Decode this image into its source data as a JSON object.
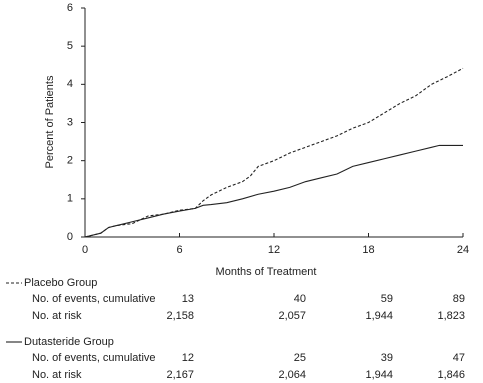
{
  "chart_data": {
    "type": "line",
    "xlabel": "Months of Treatment",
    "ylabel": "Percent of Patients",
    "xlim": [
      0,
      24
    ],
    "xticks": [
      0,
      6,
      12,
      18,
      24
    ],
    "ylim": [
      0,
      6
    ],
    "yticks": [
      0,
      1,
      2,
      3,
      4,
      5,
      6
    ],
    "series": [
      {
        "name": "Placebo Group",
        "color": "#222222",
        "dash": true,
        "x": [
          0,
          1,
          1.5,
          2,
          3,
          4,
          5,
          6,
          7,
          7.5,
          8,
          9,
          10,
          10.5,
          11,
          12,
          13,
          14,
          15,
          16,
          17,
          18,
          19,
          20,
          21,
          22,
          23,
          24
        ],
        "values": [
          0,
          0.1,
          0.25,
          0.3,
          0.35,
          0.55,
          0.6,
          0.7,
          0.75,
          0.95,
          1.1,
          1.3,
          1.45,
          1.6,
          1.85,
          2.0,
          2.2,
          2.35,
          2.5,
          2.65,
          2.85,
          3.0,
          3.25,
          3.5,
          3.7,
          4.0,
          4.2,
          4.42
        ]
      },
      {
        "name": "Dutasteride Group",
        "color": "#222222",
        "dash": false,
        "x": [
          0,
          1,
          1.5,
          2,
          3,
          4,
          5,
          6,
          7,
          7.5,
          8,
          9,
          10,
          11,
          12,
          13,
          14,
          15,
          16,
          17,
          18,
          19,
          20,
          21,
          22,
          22.5,
          24
        ],
        "values": [
          0,
          0.1,
          0.25,
          0.3,
          0.4,
          0.5,
          0.6,
          0.68,
          0.75,
          0.83,
          0.85,
          0.9,
          1.0,
          1.12,
          1.2,
          1.3,
          1.45,
          1.55,
          1.65,
          1.85,
          1.95,
          2.05,
          2.15,
          2.25,
          2.35,
          2.4,
          2.4
        ]
      }
    ]
  },
  "risk_table": [
    {
      "rows": [
        {
          "label": "No. of events, cumulative",
          "values": [
            "13",
            "40",
            "59",
            "89"
          ]
        },
        {
          "label": "No. at risk",
          "values": [
            "2,158",
            "2,057",
            "1,944",
            "1,823"
          ]
        }
      ]
    },
    {
      "rows": [
        {
          "label": "No. of events, cumulative",
          "values": [
            "12",
            "25",
            "39",
            "47"
          ]
        },
        {
          "label": "No. at risk",
          "values": [
            "2,167",
            "2,064",
            "1,944",
            "1,846"
          ]
        }
      ]
    }
  ]
}
